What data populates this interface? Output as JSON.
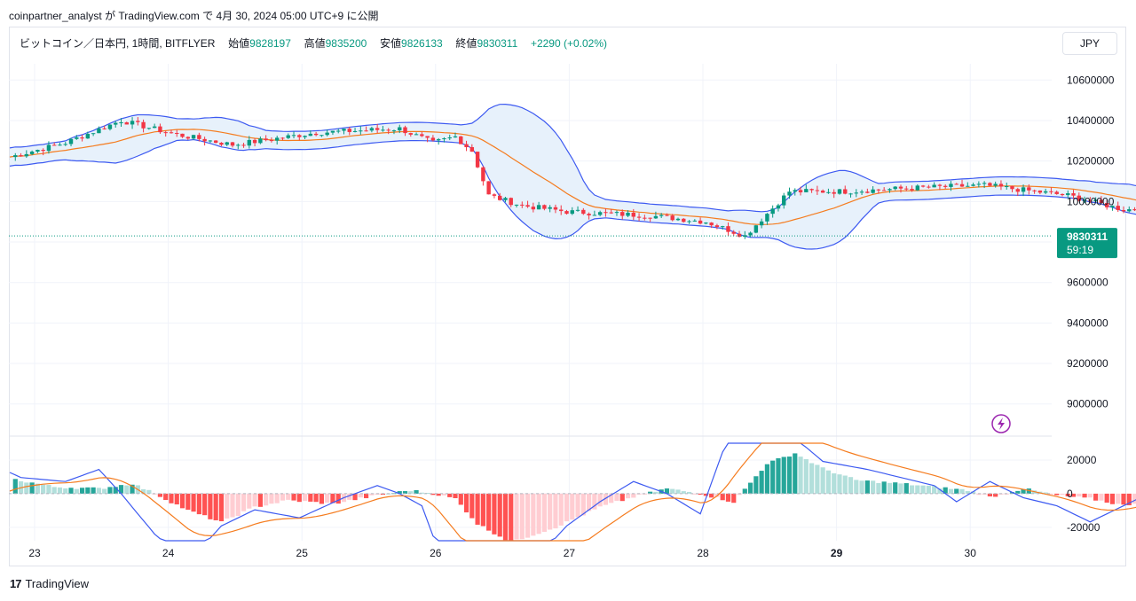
{
  "header": {
    "author": "coinpartner_analyst",
    "published_text": "coinpartner_analyst が TradingView.com で 4月 30, 2024 05:00 UTC+9 に公開"
  },
  "legend": {
    "symbol": "ビットコイン／日本円, 1時間, BITFLYER",
    "open_label": "始値",
    "open": "9828197",
    "high_label": "高値",
    "high": "9835200",
    "low_label": "安値",
    "low": "9826133",
    "close_label": "終値",
    "close": "9830311",
    "change": "+2290 (+0.02%)"
  },
  "currency_button": "JPY",
  "price_badge": {
    "price": "9830311",
    "countdown": "59:19"
  },
  "footer": {
    "brand": "TradingView"
  },
  "colors": {
    "up": "#089981",
    "down": "#f23645",
    "bb": "#3d5af1",
    "basis": "#f57c1f",
    "band_fill": "#e7f1fb",
    "hist_up_strong": "#26a69a",
    "hist_up_weak": "#b2dfdb",
    "hist_down_strong": "#ff5252",
    "hist_down_weak": "#ffcdd2"
  },
  "chart_data": [
    {
      "type": "candlestick",
      "title": "",
      "x_ticks": [
        "23",
        "24",
        "25",
        "26",
        "27",
        "28",
        "29",
        "30"
      ],
      "y_ticks": [
        10600000,
        10400000,
        10200000,
        10000000,
        9800000,
        9600000,
        9400000,
        9200000,
        9000000
      ],
      "ylim": [
        8850000,
        10680000
      ],
      "last_price": 9830311,
      "overlays": [
        "Bollinger Bands (upper, basis, lower)"
      ],
      "bars_per_day": 24,
      "anchors": [
        [
          0,
          10220000
        ],
        [
          10,
          10290000
        ],
        [
          20,
          10400000
        ],
        [
          30,
          10330000
        ],
        [
          40,
          10280000
        ],
        [
          55,
          10340000
        ],
        [
          70,
          10360000
        ],
        [
          76,
          10290000
        ],
        [
          80,
          10320000
        ],
        [
          83,
          10250000
        ],
        [
          86,
          10030000
        ],
        [
          92,
          9980000
        ],
        [
          100,
          9950000
        ],
        [
          115,
          9930000
        ],
        [
          125,
          9900000
        ],
        [
          132,
          9830000
        ],
        [
          140,
          10050000
        ],
        [
          150,
          10050000
        ],
        [
          165,
          10070000
        ],
        [
          175,
          10080000
        ],
        [
          190,
          10030000
        ],
        [
          200,
          9960000
        ],
        [
          210,
          9970000
        ],
        [
          222,
          10090000
        ],
        [
          235,
          10100000
        ],
        [
          248,
          10080000
        ],
        [
          258,
          10070000
        ],
        [
          265,
          9900000
        ],
        [
          272,
          9740000
        ],
        [
          280,
          9760000
        ],
        [
          285,
          9810000
        ],
        [
          290,
          9880000
        ],
        [
          295,
          9830000
        ]
      ]
    },
    {
      "type": "histogram",
      "title": "",
      "y_ticks": [
        20000,
        0,
        -20000
      ],
      "ylim": [
        -28000,
        30000
      ],
      "series": [
        {
          "name": "",
          "role": "histogram"
        },
        {
          "name": "",
          "role": "macd",
          "color": "#3d5af1"
        },
        {
          "name": "",
          "role": "signal",
          "color": "#f57c1f"
        }
      ],
      "anchors": [
        [
          0,
          9000
        ],
        [
          8,
          4000
        ],
        [
          16,
          3000
        ],
        [
          22,
          6000
        ],
        [
          26,
          0
        ],
        [
          32,
          -10000
        ],
        [
          38,
          -17000
        ],
        [
          44,
          -8000
        ],
        [
          50,
          -4000
        ],
        [
          58,
          -6000
        ],
        [
          66,
          -1000
        ],
        [
          72,
          2000
        ],
        [
          76,
          0
        ],
        [
          80,
          -3000
        ],
        [
          84,
          -18000
        ],
        [
          90,
          -29000
        ],
        [
          98,
          -20000
        ],
        [
          106,
          -8000
        ],
        [
          112,
          -2000
        ],
        [
          118,
          3000
        ],
        [
          124,
          0
        ],
        [
          130,
          -5000
        ],
        [
          136,
          18000
        ],
        [
          141,
          24000
        ],
        [
          146,
          15000
        ],
        [
          152,
          8000
        ],
        [
          160,
          6000
        ],
        [
          166,
          4000
        ],
        [
          172,
          2000
        ],
        [
          176,
          -2000
        ],
        [
          182,
          3000
        ],
        [
          188,
          -1000
        ],
        [
          194,
          -3000
        ],
        [
          200,
          -7000
        ],
        [
          206,
          -3000
        ],
        [
          212,
          1000
        ],
        [
          218,
          6000
        ],
        [
          224,
          10000
        ],
        [
          230,
          12000
        ],
        [
          236,
          2000
        ],
        [
          242,
          -3000
        ],
        [
          248,
          -1000
        ],
        [
          254,
          -5000
        ],
        [
          260,
          -9000
        ],
        [
          264,
          -18000
        ],
        [
          270,
          -28000
        ],
        [
          276,
          -20000
        ],
        [
          280,
          -8000
        ],
        [
          284,
          6000
        ],
        [
          288,
          12000
        ],
        [
          292,
          13000
        ]
      ]
    }
  ]
}
